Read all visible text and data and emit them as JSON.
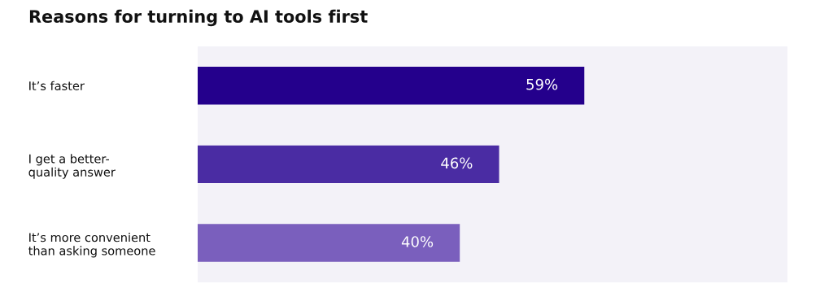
{
  "chart_data": {
    "type": "bar",
    "orientation": "horizontal",
    "title": "Reasons for turning to AI tools first",
    "categories": [
      "It’s faster",
      "I get a better-\nquality answer",
      "It’s more convenient\nthan asking someone"
    ],
    "values": [
      59,
      46,
      40
    ],
    "colors": [
      "#24008c",
      "#4a2ca3",
      "#7a5fbd"
    ],
    "value_labels": [
      "59%",
      "46%",
      "40%"
    ],
    "xlim": [
      0,
      90
    ],
    "grid": false,
    "legend": false
  }
}
